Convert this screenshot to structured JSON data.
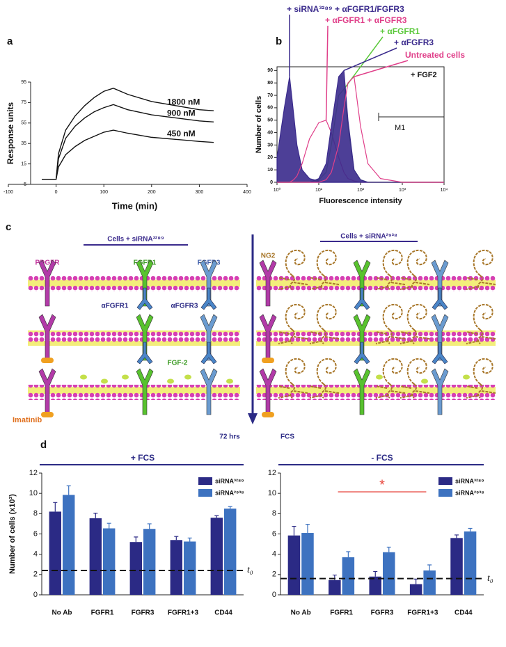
{
  "chart_data": [
    {
      "panel": "a",
      "type": "line",
      "x": [
        -30,
        0,
        5,
        20,
        40,
        60,
        80,
        100,
        120,
        150,
        200,
        250,
        300,
        330
      ],
      "series": [
        {
          "name": "1800 nM",
          "color": "#111111",
          "values": [
            0,
            0,
            25,
            48,
            62,
            72,
            80,
            86,
            89,
            83,
            76,
            72,
            68,
            67
          ]
        },
        {
          "name": "900 nM",
          "color": "#111111",
          "values": [
            0,
            0,
            20,
            40,
            52,
            60,
            66,
            70,
            73,
            68,
            63,
            60,
            57,
            56
          ]
        },
        {
          "name": "450 nM",
          "color": "#111111",
          "values": [
            0,
            0,
            12,
            24,
            32,
            38,
            42,
            46,
            48,
            45,
            41,
            39,
            37,
            36
          ]
        }
      ],
      "xlim": [
        -100,
        400
      ],
      "xticks": [
        -100,
        0,
        100,
        200,
        300,
        400
      ],
      "ylim": [
        -5,
        95
      ],
      "yticks": [
        -5,
        15,
        35,
        55,
        75,
        95
      ],
      "xlabel": "Time (min)",
      "ylabel": "Response units"
    },
    {
      "panel": "b",
      "type": "area",
      "xlog": true,
      "x": [
        1,
        1.5,
        2,
        2.5,
        3,
        4,
        6,
        10,
        15,
        20,
        30,
        40,
        50,
        70,
        100,
        150,
        300,
        1000,
        10000
      ],
      "series": [
        {
          "name": "+ siRNA³²⁸⁹ + αFGFR1/FGFR3",
          "color": "#3a2a8c",
          "filled": true,
          "values": [
            20,
            60,
            85,
            55,
            30,
            10,
            3,
            1,
            0,
            0,
            0,
            0,
            0,
            0,
            0,
            0,
            0,
            0,
            0
          ]
        },
        {
          "name": "+ αFGFR1 + αFGFR3",
          "color": "#e0408a",
          "filled": false,
          "values": [
            0,
            0,
            0,
            2,
            5,
            15,
            35,
            48,
            50,
            40,
            20,
            8,
            3,
            1,
            0,
            0,
            0,
            0,
            0
          ]
        },
        {
          "name": "+ αFGFR1",
          "color": "#5cc93c",
          "filled": false,
          "values": [
            0,
            0,
            0,
            0,
            0,
            0,
            0,
            2,
            8,
            30,
            70,
            75,
            45,
            10,
            2,
            0,
            0,
            0,
            0
          ]
        },
        {
          "name": "+ αFGFR3",
          "color": "#3a2a8c",
          "filled": true,
          "values": [
            0,
            0,
            0,
            0,
            0,
            0,
            0,
            3,
            15,
            45,
            85,
            90,
            50,
            10,
            2,
            0,
            0,
            0,
            0
          ]
        },
        {
          "name": "Untreated cells",
          "color": "#e0408a",
          "filled": false,
          "values": [
            0,
            0,
            0,
            0,
            0,
            0,
            0,
            0,
            2,
            8,
            30,
            60,
            80,
            85,
            45,
            15,
            3,
            0,
            0
          ]
        }
      ],
      "xlim": [
        1,
        10000
      ],
      "xticks": [
        {
          "value": 1,
          "label": "10⁰"
        },
        {
          "value": 10,
          "label": "10¹"
        },
        {
          "value": 100,
          "label": "10²"
        },
        {
          "value": 1000,
          "label": "10³"
        },
        {
          "value": 10000,
          "label": "10⁴"
        }
      ],
      "ylim": [
        0,
        93
      ],
      "yticks": [
        0,
        10,
        20,
        30,
        40,
        50,
        60,
        70,
        80,
        90
      ],
      "xlabel": "Fluorescence intensity",
      "ylabel": "Number of cells",
      "treatment": "+ FGF2",
      "gate": "M1"
    },
    {
      "panel": "d",
      "type": "bar",
      "title": "+ FCS",
      "categories": [
        "No Ab",
        "FGFR1",
        "FGFR3",
        "FGFR1+3",
        "CD44"
      ],
      "series": [
        {
          "name": "siRNA³²⁸⁹",
          "color": "#2b2a85",
          "values": [
            8.2,
            7.55,
            5.2,
            5.4,
            7.6
          ],
          "errors": [
            0.9,
            0.5,
            0.5,
            0.35,
            0.2
          ]
        },
        {
          "name": "siRNA²⁹³⁸",
          "color": "#3d72c0",
          "values": [
            9.85,
            6.55,
            6.5,
            5.25,
            8.5
          ],
          "errors": [
            0.9,
            0.5,
            0.5,
            0.35,
            0.2
          ]
        }
      ],
      "ylim": [
        0,
        12
      ],
      "yticks": [
        0,
        2,
        4,
        6,
        8,
        10,
        12
      ],
      "ylabel": "Number of cells (x10³)",
      "t0": {
        "label": "t₀",
        "value": 2.4
      }
    },
    {
      "type": "bar",
      "title": "- FCS",
      "categories": [
        "No Ab",
        "FGFR1",
        "FGFR3",
        "FGFR1+3",
        "CD44"
      ],
      "series": [
        {
          "name": "siRNA³²⁸⁹",
          "color": "#2b2a85",
          "values": [
            5.85,
            1.45,
            1.8,
            1.05,
            5.6
          ],
          "errors": [
            0.9,
            0.5,
            0.5,
            0.5,
            0.3
          ]
        },
        {
          "name": "siRNA²⁹³⁸",
          "color": "#3d72c0",
          "values": [
            6.1,
            3.7,
            4.2,
            2.4,
            6.25
          ],
          "errors": [
            0.85,
            0.55,
            0.5,
            0.55,
            0.3
          ]
        }
      ],
      "ylim": [
        0,
        12
      ],
      "yticks": [
        0,
        2,
        4,
        6,
        8,
        10,
        12
      ],
      "annotation": "*",
      "t0": {
        "label": "t₀",
        "value": 1.6
      }
    }
  ],
  "diagram": {
    "panel": "c",
    "left_title": "Cells + siRNA³²⁸⁹",
    "right_title": "Cells + siRNA²⁹³⁸",
    "receptors": [
      "PDGFR",
      "FGFR1",
      "FGFR3"
    ],
    "proteoglycan": "NG2",
    "antibodies": [
      "αFGFR1",
      "αFGFR3"
    ],
    "ligand": "FGF-2",
    "inhibitor": "Imatinib",
    "time": "72 hrs",
    "medium": "FCS"
  }
}
